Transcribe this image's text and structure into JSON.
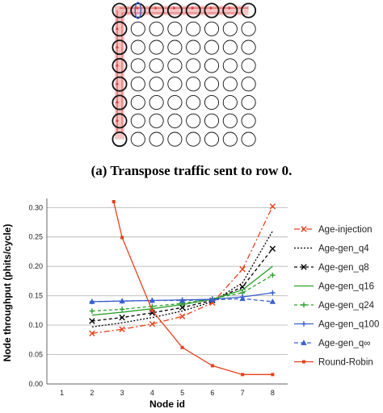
{
  "figure_a": {
    "caption": "(a) Transpose traffic sent to row 0.",
    "rows": 8,
    "cols": 8
  },
  "colors": {
    "path_fill": "#f2b8b8",
    "path_line": "#d93c3c",
    "highlight_blue": "#3a5fcd",
    "grid_line": "#b8b8b8",
    "axis": "#666666"
  },
  "chart_data": {
    "type": "line",
    "title": "",
    "xlabel": "Node id",
    "ylabel": "Node throughput (phits/cycle)",
    "x_ticks": [
      "1",
      "2",
      "3",
      "4",
      "5",
      "6",
      "7",
      "8"
    ],
    "y_ticks": [
      "0.00",
      "0.05",
      "0.10",
      "0.15",
      "0.20",
      "0.25",
      "0.30"
    ],
    "xlim": [
      0.5,
      8.5
    ],
    "ylim": [
      0,
      0.31
    ],
    "grid": "horizontal",
    "legend_position": "right",
    "series": [
      {
        "name": "Age-injection",
        "color": "#e8401c",
        "dash": "7,3,2,3",
        "marker": "x",
        "x": [
          2,
          3,
          4,
          5,
          6,
          7,
          8
        ],
        "values": [
          0.086,
          0.093,
          0.102,
          0.115,
          0.138,
          0.195,
          0.302
        ]
      },
      {
        "name": "Age-gen_q4",
        "color": "#000000",
        "dash": "2,2",
        "marker": "none",
        "x": [
          2,
          3,
          4,
          5,
          6,
          7,
          8
        ],
        "values": [
          0.097,
          0.104,
          0.113,
          0.124,
          0.14,
          0.172,
          0.26
        ]
      },
      {
        "name": "Age-gen_q8",
        "color": "#000000",
        "dash": "4,3",
        "marker": "x",
        "x": [
          2,
          3,
          4,
          5,
          6,
          7,
          8
        ],
        "values": [
          0.107,
          0.113,
          0.121,
          0.13,
          0.142,
          0.165,
          0.23
        ]
      },
      {
        "name": "Age-gen_q16",
        "color": "#2ca02c",
        "dash": "",
        "marker": "none",
        "x": [
          2,
          3,
          4,
          5,
          6,
          7,
          8
        ],
        "values": [
          0.117,
          0.122,
          0.128,
          0.135,
          0.144,
          0.16,
          0.2
        ]
      },
      {
        "name": "Age-gen_q24",
        "color": "#2ca02c",
        "dash": "4,3",
        "marker": "plus",
        "x": [
          2,
          3,
          4,
          5,
          6,
          7,
          8
        ],
        "values": [
          0.124,
          0.127,
          0.132,
          0.137,
          0.145,
          0.155,
          0.185
        ]
      },
      {
        "name": "Age-gen_q100",
        "color": "#3a5fcd",
        "dash": "",
        "marker": "plus",
        "x": [
          2,
          3,
          4,
          5,
          6,
          7,
          8
        ],
        "values": [
          0.14,
          0.141,
          0.142,
          0.143,
          0.144,
          0.148,
          0.155
        ]
      },
      {
        "name": "Age-gen_q∞",
        "color": "#3a5fcd",
        "dash": "5,3",
        "marker": "triangle",
        "x": [
          2,
          3,
          4,
          5,
          6,
          7,
          8
        ],
        "values": [
          0.14,
          0.141,
          0.142,
          0.142,
          0.143,
          0.145,
          0.14
        ]
      },
      {
        "name": "Round-Robin",
        "color": "#e8401c",
        "dash": "",
        "marker": "square",
        "x": [
          2.72,
          3,
          4,
          5,
          6,
          7,
          8
        ],
        "values": [
          0.31,
          0.249,
          0.125,
          0.062,
          0.031,
          0.016,
          0.016
        ]
      }
    ]
  }
}
